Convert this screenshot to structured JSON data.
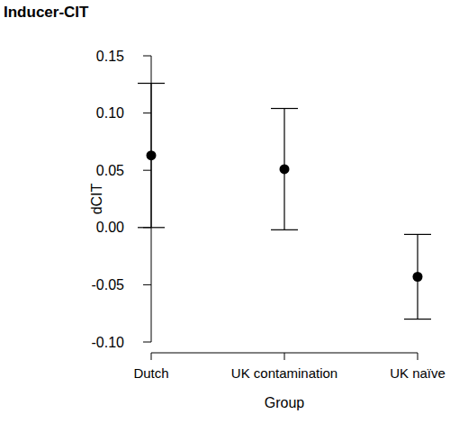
{
  "chart_data": {
    "type": "scatter",
    "title": "Inducer-CIT",
    "x_label": "Group",
    "y_label": "dCIT",
    "categories": [
      "Dutch",
      "UK contamination",
      "UK naïve"
    ],
    "values": [
      0.063,
      0.051,
      -0.043
    ],
    "error": [
      0.063,
      0.053,
      0.037
    ],
    "color": "#000000",
    "marker": "circle",
    "ylim": [
      -0.1,
      0.15
    ],
    "yticks": [
      {
        "value": -0.1,
        "label": "-0.10"
      },
      -0.05,
      {
        "value": 0,
        "label": "0.00"
      },
      0.05,
      {
        "value": 0.1,
        "label": "0.10"
      },
      0.15
    ],
    "grid": false
  }
}
